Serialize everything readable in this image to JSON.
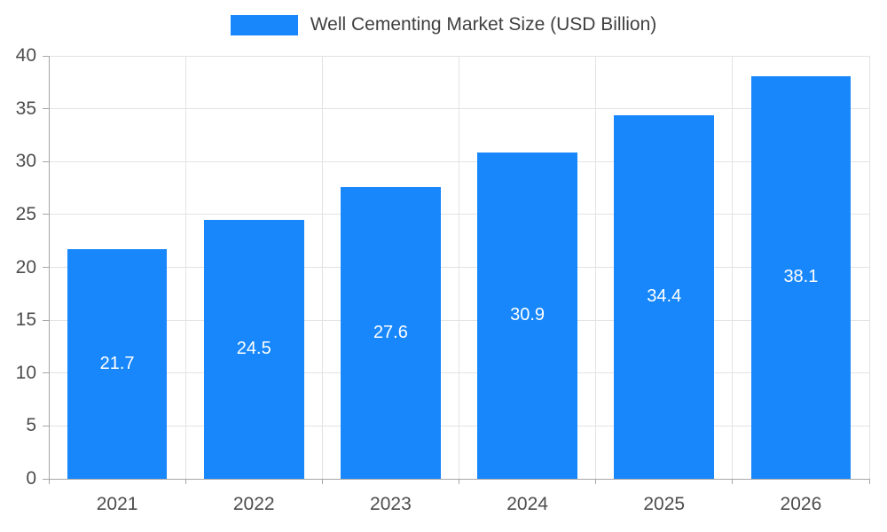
{
  "legend": {
    "label": "Well Cementing Market Size (USD Billion)"
  },
  "colors": {
    "bar": "#1787fb",
    "grid": "#e3e3e3",
    "axis": "#a6a6a6",
    "tick_text": "#4d4d4d",
    "bar_label": "#ffffff",
    "background": "#ffffff"
  },
  "chart_data": {
    "type": "bar",
    "title": "Well Cementing Market Size (USD Billion)",
    "categories": [
      "2021",
      "2022",
      "2023",
      "2024",
      "2025",
      "2026"
    ],
    "values": [
      21.7,
      24.5,
      27.6,
      30.9,
      34.4,
      38.1
    ],
    "series_name": "Well Cementing Market Size (USD Billion)",
    "xlabel": "",
    "ylabel": "",
    "ylim": [
      0,
      40
    ],
    "ytick_step": 5,
    "yticks": [
      0,
      5,
      10,
      15,
      20,
      25,
      30,
      35,
      40
    ],
    "grid": true,
    "legend_position": "top",
    "bar_labels_inside": true
  }
}
